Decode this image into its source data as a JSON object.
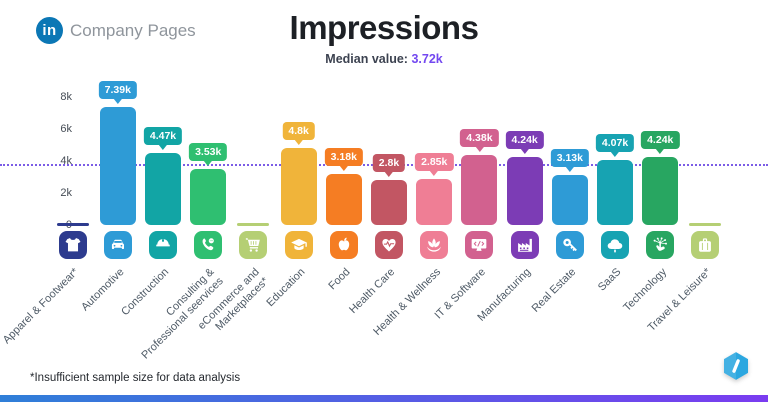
{
  "header": {
    "brand": {
      "logo": "linkedin-icon",
      "logo_text": "in",
      "logo_color": "#0b77b5",
      "label": "Company Pages"
    },
    "title": "Impressions",
    "subtitle_label": "Median value:",
    "median_value": "3.72k",
    "median_value_color": "#7348f0"
  },
  "footer": {
    "note": "*Insufficient sample size for data analysis",
    "logo": "socialinsider-hexagon-logo",
    "bar_gradient": [
      "#2f7fd8",
      "#7a3cf0"
    ]
  },
  "chart_data": {
    "type": "bar",
    "title": "Impressions",
    "subtitle": "Median value: 3.72k",
    "median": 3.72,
    "median_label": "3.72k",
    "unit": "k",
    "ylim": [
      0,
      8
    ],
    "yticks": [
      {
        "value": 8,
        "label": "8k"
      },
      {
        "value": 6,
        "label": "6k"
      },
      {
        "value": 4,
        "label": "4k"
      },
      {
        "value": 2,
        "label": "2k"
      },
      {
        "value": 0,
        "label": "0"
      }
    ],
    "grid": false,
    "legend": false,
    "median_line_color": "#7b5ce6",
    "footnote": "*Insufficient sample size for data analysis",
    "categories": [
      {
        "label": "Apparel & Footwear*",
        "value": null,
        "value_label": "",
        "insufficient": true,
        "color": "#2d3b8e",
        "icon": "tshirt-icon"
      },
      {
        "label": "Automotive",
        "value": 7.39,
        "value_label": "7.39k",
        "color": "#2e9bd6",
        "icon": "car-icon"
      },
      {
        "label": "Construction",
        "value": 4.47,
        "value_label": "4.47k",
        "color": "#12a5a5",
        "icon": "hard-hat-icon"
      },
      {
        "label": "Consulting &\nProfessional seervices",
        "value": 3.53,
        "value_label": "3.53k",
        "color": "#2fbf71",
        "icon": "phone-support-icon"
      },
      {
        "label": "eCommerce and\nMarketplaces*",
        "value": null,
        "value_label": "",
        "insufficient": true,
        "color": "#b5cf74",
        "icon": "shopping-cart-icon"
      },
      {
        "label": "Education",
        "value": 4.8,
        "value_label": "4.8k",
        "color": "#f0b43a",
        "icon": "graduation-cap-icon"
      },
      {
        "label": "Food",
        "value": 3.18,
        "value_label": "3.18k",
        "color": "#f57d23",
        "icon": "apple-icon"
      },
      {
        "label": "Health Care",
        "value": 2.8,
        "value_label": "2.8k",
        "color": "#c25663",
        "icon": "heart-pulse-icon"
      },
      {
        "label": "Health & Wellness",
        "value": 2.85,
        "value_label": "2.85k",
        "color": "#ef7e95",
        "icon": "lotus-icon"
      },
      {
        "label": "IT & Software",
        "value": 4.38,
        "value_label": "4.38k",
        "color": "#d2618f",
        "icon": "monitor-code-icon"
      },
      {
        "label": "Manufacturing",
        "value": 4.24,
        "value_label": "4.24k",
        "color": "#7c3cb5",
        "icon": "factory-icon"
      },
      {
        "label": "Real Estate",
        "value": 3.13,
        "value_label": "3.13k",
        "color": "#2e9bd6",
        "icon": "key-icon"
      },
      {
        "label": "SaaS",
        "value": 4.07,
        "value_label": "4.07k",
        "color": "#17a3b2",
        "icon": "cloud-icon"
      },
      {
        "label": "Technology",
        "value": 4.24,
        "value_label": "4.24k",
        "color": "#28a661",
        "icon": "touch-network-icon"
      },
      {
        "label": "Travel & Leisure*",
        "value": null,
        "value_label": "",
        "insufficient": true,
        "color": "#b5cf74",
        "icon": "suitcase-icon"
      }
    ]
  }
}
